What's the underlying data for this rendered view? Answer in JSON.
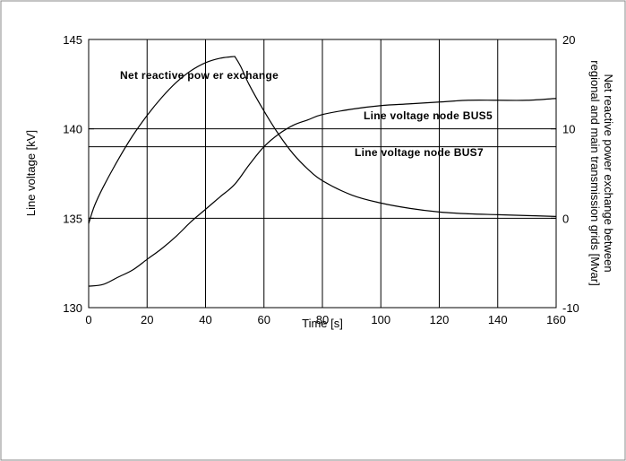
{
  "chart_data": {
    "type": "line",
    "xlabel": "Time [s]",
    "ylabel": "Line voltage [kV]",
    "y2label_lines": [
      "Net reactive power exchange between",
      "regional and main transmission grids [Mvar]"
    ],
    "xlim": [
      0,
      160
    ],
    "ylim": [
      130,
      145
    ],
    "y2lim": [
      -10,
      20
    ],
    "x_ticks": [
      "0",
      "20",
      "40",
      "60",
      "80",
      "100",
      "120",
      "140",
      "160"
    ],
    "y_ticks": [
      "130",
      "135",
      "140",
      "145"
    ],
    "y2_ticks": [
      "-10",
      "0",
      "10",
      "20"
    ],
    "grid": true,
    "reference_lines_y": [
      140,
      139
    ],
    "series": [
      {
        "name": "Line voltage node BUS5",
        "axis": "left",
        "x": [
          0,
          5,
          10,
          15,
          20,
          25,
          30,
          35,
          40,
          45,
          50,
          55,
          60,
          65,
          70,
          75,
          80,
          90,
          100,
          110,
          120,
          130,
          140,
          150,
          160
        ],
        "y": [
          131.2,
          131.3,
          131.7,
          132.1,
          132.7,
          133.3,
          134.0,
          134.8,
          135.5,
          136.2,
          136.9,
          138.0,
          139.0,
          139.7,
          140.2,
          140.5,
          140.8,
          141.1,
          141.3,
          141.4,
          141.5,
          141.6,
          141.6,
          141.6,
          141.7
        ]
      },
      {
        "name": "Net reactive power exchange",
        "axis": "right",
        "x": [
          0,
          2,
          5,
          10,
          15,
          20,
          25,
          30,
          35,
          40,
          45,
          50,
          52,
          55,
          60,
          65,
          70,
          75,
          80,
          90,
          100,
          110,
          120,
          130,
          140,
          150,
          160
        ],
        "y": [
          -0.6,
          1.4,
          3.5,
          6.5,
          9.2,
          11.5,
          13.5,
          15.2,
          16.5,
          17.4,
          17.9,
          18.1,
          17.0,
          14.9,
          12.0,
          9.4,
          7.2,
          5.5,
          4.2,
          2.6,
          1.7,
          1.1,
          0.7,
          0.5,
          0.4,
          0.3,
          0.2
        ]
      }
    ],
    "annotations": [
      {
        "text": "Net reactive pow er exchange"
      },
      {
        "text": "Line voltage node BUS5"
      },
      {
        "text": "Line voltage node BUS7"
      }
    ]
  }
}
